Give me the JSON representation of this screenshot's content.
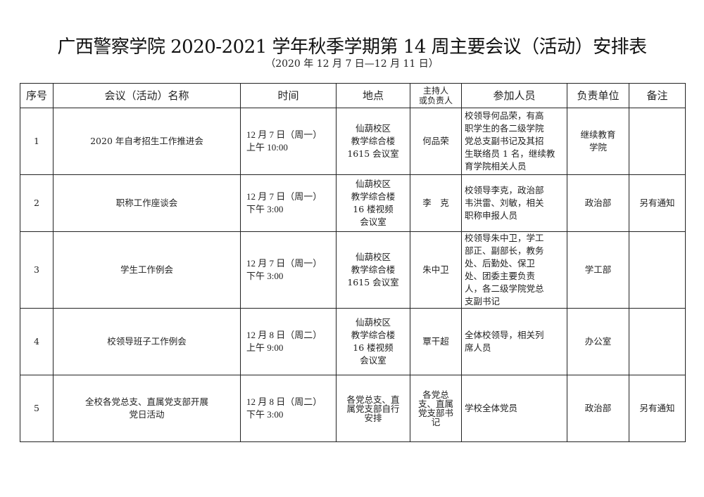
{
  "title": "广西警察学院 2020-2021 学年秋季学期第 14 周主要会议（活动）安排表",
  "subtitle": "（2020 年 12 月 7 日—12 月 11 日）",
  "headers": {
    "no": "序号",
    "name": "会议（活动）名称",
    "time": "时间",
    "place": "地点",
    "host_1": "主持人",
    "host_2": "或负责人",
    "participants": "参加人员",
    "unit": "负责单位",
    "remark": "备注"
  },
  "rows": [
    {
      "no": "1",
      "name": [
        "2020 年自考招生工作推进会"
      ],
      "time": [
        "12 月 7 日（周一）",
        "上午 10:00"
      ],
      "place": [
        "仙葫校区",
        "教学综合楼",
        "1615 会议室"
      ],
      "host": [
        "何品荣"
      ],
      "participants": [
        "校领导何品荣，有高",
        "职学生的各二级学院",
        "党总支副书记及其招",
        "生联络员 1 名，继续教",
        "育学院相关人员"
      ],
      "unit": [
        "继续教育",
        "学院"
      ],
      "remark": []
    },
    {
      "no": "2",
      "name": [
        "职称工作座谈会"
      ],
      "time": [
        "12 月 7 日（周一）",
        "下午 3:00"
      ],
      "place": [
        "仙葫校区",
        "教学综合楼",
        "16 楼视频",
        "会议室"
      ],
      "host": [
        "李　克"
      ],
      "participants": [
        "校领导李克，政治部",
        "韦洪雷、刘敏，相关",
        "职称申报人员"
      ],
      "unit": [
        "政治部"
      ],
      "remark": [
        "另有通知"
      ]
    },
    {
      "no": "3",
      "name": [
        "学生工作例会"
      ],
      "time": [
        "12 月 7 日（周一）",
        "下午 3:00"
      ],
      "place": [
        "仙葫校区",
        "教学综合楼",
        "1615 会议室"
      ],
      "host": [
        "朱中卫"
      ],
      "participants": [
        "校领导朱中卫，学工",
        "部正、副部长，教务",
        "处、后勤处、保卫",
        "处、团委主要负责",
        "人，各二级学院党总",
        "支副书记"
      ],
      "unit": [
        "学工部"
      ],
      "remark": []
    },
    {
      "no": "4",
      "name": [
        "校领导班子工作例会"
      ],
      "time": [
        "12 月 8 日（周二）",
        "上午 9:00"
      ],
      "place": [
        "仙葫校区",
        "教学综合楼",
        "16 楼视频",
        "会议室"
      ],
      "host": [
        "覃干超"
      ],
      "participants": [
        "全体校领导，相关列",
        "席人员"
      ],
      "unit": [
        "办公室"
      ],
      "remark": []
    },
    {
      "no": "5",
      "name": [
        "全校各党总支、直属党支部开展",
        "党日活动"
      ],
      "time": [
        "12 月 8 日（周二）",
        "下午 3:00"
      ],
      "place": [
        "各党总支、直",
        "属党支部自行",
        "安排"
      ],
      "host": [
        "各党总",
        "支、直属",
        "党支部书",
        "记"
      ],
      "participants": [
        "学校全体党员"
      ],
      "unit": [
        "政治部"
      ],
      "remark": [
        "另有通知"
      ]
    }
  ]
}
